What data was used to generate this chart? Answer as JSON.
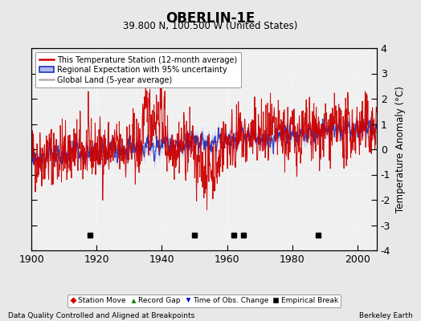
{
  "title": "OBERLIN-1E",
  "subtitle": "39.800 N, 100.500 W (United States)",
  "ylabel": "Temperature Anomaly (°C)",
  "xlabel_left": "Data Quality Controlled and Aligned at Breakpoints",
  "xlabel_right": "Berkeley Earth",
  "ylim": [
    -4,
    4
  ],
  "xlim": [
    1900,
    2006
  ],
  "yticks": [
    -4,
    -3,
    -2,
    -1,
    0,
    1,
    2,
    3,
    4
  ],
  "xticks": [
    1900,
    1920,
    1940,
    1960,
    1980,
    2000
  ],
  "empirical_breaks": [
    1918,
    1950,
    1962,
    1965,
    1988
  ],
  "bg_color": "#e8e8e8",
  "plot_bg_color": "#f0f0f0",
  "red_color": "#cc0000",
  "blue_color": "#2233bb",
  "blue_fill_color": "#b0b8ee",
  "gray_color": "#b0b0b0",
  "seed": 42
}
